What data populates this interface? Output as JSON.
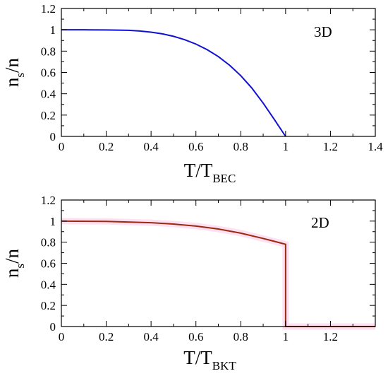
{
  "chart_data": [
    {
      "type": "line",
      "panel_label": "3D",
      "xlabel": "T/T",
      "xlabel_sub": "BEC",
      "ylabel": "n",
      "ylabel_sub": "s",
      "ylabel_suffix": "/n",
      "xlim": [
        0,
        1.4
      ],
      "ylim": [
        0,
        1.2
      ],
      "xticks": [
        0,
        0.2,
        0.4,
        0.6,
        0.8,
        1,
        1.2,
        1.4
      ],
      "xtick_labels": [
        "0",
        "0.2",
        "0.4",
        "0.6",
        "0.8",
        "1",
        "1.2",
        "1.4"
      ],
      "yticks": [
        0,
        0.2,
        0.4,
        0.6,
        0.8,
        1,
        1.2
      ],
      "ytick_labels": [
        "0",
        "0.2",
        "0.4",
        "0.6",
        "0.8",
        "1",
        "1.2"
      ],
      "grid": false,
      "series": [
        {
          "color": "#1010d0",
          "x": [
            0,
            0.1,
            0.2,
            0.3,
            0.35,
            0.4,
            0.45,
            0.5,
            0.55,
            0.6,
            0.65,
            0.7,
            0.75,
            0.8,
            0.85,
            0.9,
            0.95,
            1.0
          ],
          "y": [
            1.0,
            1.0,
            0.999,
            0.995,
            0.989,
            0.978,
            0.962,
            0.939,
            0.907,
            0.866,
            0.814,
            0.749,
            0.668,
            0.57,
            0.452,
            0.312,
            0.158,
            0.0
          ]
        }
      ]
    },
    {
      "type": "line",
      "panel_label": "2D",
      "xlabel": "T/T",
      "xlabel_sub": "BKT",
      "ylabel": "n",
      "ylabel_sub": "s",
      "ylabel_suffix": "/n",
      "xlim": [
        0,
        1.4
      ],
      "ylim": [
        0,
        1.2
      ],
      "xticks": [
        0,
        0.2,
        0.4,
        0.6,
        0.8,
        1,
        1.2
      ],
      "xtick_labels": [
        "0",
        "0.2",
        "0.4",
        "0.6",
        "0.8",
        "1",
        "1.2"
      ],
      "yticks": [
        0,
        0.2,
        0.4,
        0.6,
        0.8,
        1,
        1.2
      ],
      "ytick_labels": [
        "0",
        "0.2",
        "0.4",
        "0.6",
        "0.8",
        "1",
        "1.2"
      ],
      "grid": false,
      "series": [
        {
          "color": "#9a2a10",
          "band_color": "#ffe0f2",
          "x": [
            0,
            0.2,
            0.4,
            0.5,
            0.6,
            0.7,
            0.8,
            0.9,
            0.95,
            1.0,
            1.0,
            1.4
          ],
          "y": [
            1.0,
            0.997,
            0.985,
            0.972,
            0.953,
            0.925,
            0.886,
            0.835,
            0.808,
            0.78,
            0.0,
            0.0
          ]
        }
      ]
    }
  ]
}
